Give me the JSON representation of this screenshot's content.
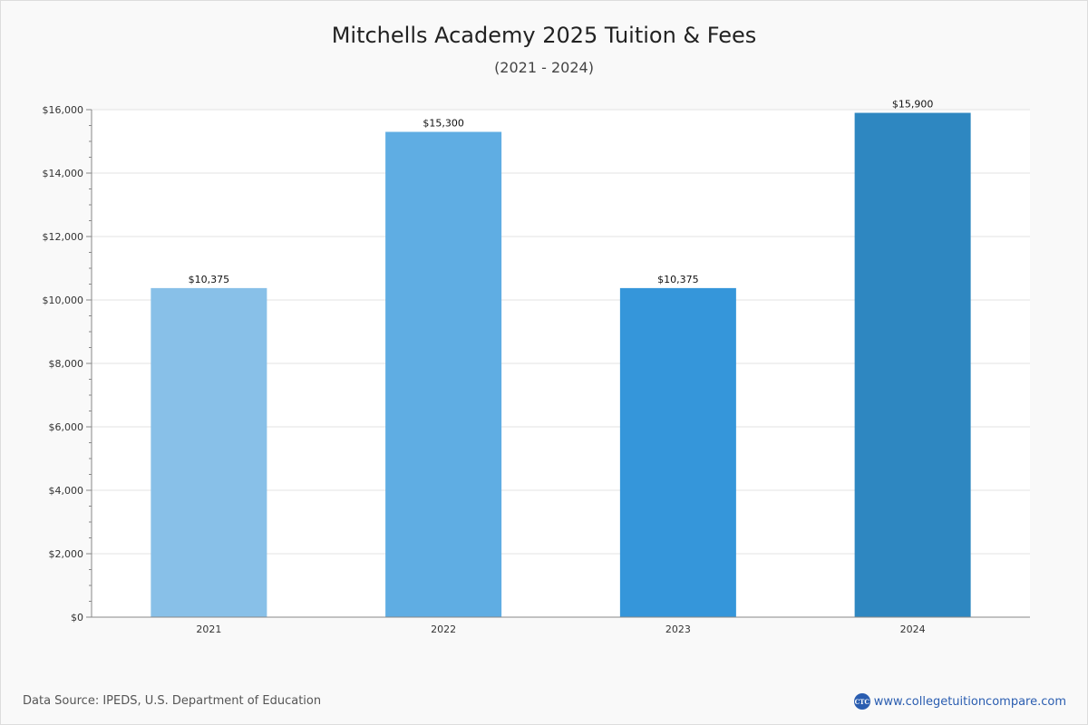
{
  "title": "Mitchells Academy 2025 Tuition & Fees",
  "subtitle": "(2021 - 2024)",
  "footer": {
    "source": "Data Source: IPEDS, U.S. Department of Education",
    "brand_url": "www.collegetuitioncompare.com",
    "logo_text": "CTC"
  },
  "colors": {
    "bars": [
      "#88c0e8",
      "#5fade3",
      "#3596da",
      "#2e87c1"
    ],
    "grid": "#e3e3e3",
    "axis": "#888888"
  },
  "chart_data": {
    "type": "bar",
    "categories": [
      "2021",
      "2022",
      "2023",
      "2024"
    ],
    "values": [
      10375,
      15300,
      10375,
      15900
    ],
    "value_labels": [
      "$10,375",
      "$15,300",
      "$10,375",
      "$15,900"
    ],
    "yticks": [
      0,
      2000,
      4000,
      6000,
      8000,
      10000,
      12000,
      14000,
      16000
    ],
    "ytick_labels": [
      "$0",
      "$2,000",
      "$4,000",
      "$6,000",
      "$8,000",
      "$10,000",
      "$12,000",
      "$14,000",
      "$16,000"
    ],
    "ylim": [
      0,
      16000
    ],
    "xlabel": "",
    "ylabel": "",
    "grid": true,
    "legend": false
  }
}
